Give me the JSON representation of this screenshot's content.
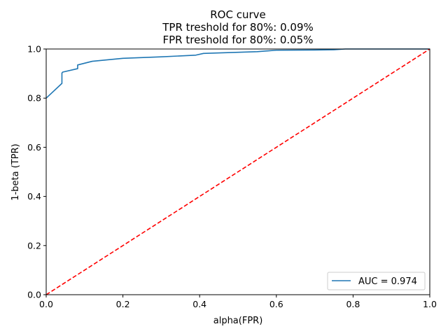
{
  "chart_data": {
    "type": "line",
    "title_lines": [
      "ROC curve",
      "TPR treshold for 80%: 0.09%",
      "FPR treshold for 80%: 0.05%"
    ],
    "xlabel": "alpha(FPR)",
    "ylabel": "1-beta (TPR)",
    "xlim": [
      0,
      1
    ],
    "ylim": [
      0,
      1
    ],
    "xticks": [
      0.0,
      0.2,
      0.4,
      0.6,
      0.8,
      1.0
    ],
    "yticks": [
      0.0,
      0.2,
      0.4,
      0.6,
      0.8,
      1.0
    ],
    "xtick_labels": [
      "0.0",
      "0.2",
      "0.4",
      "0.6",
      "0.8",
      "1.0"
    ],
    "ytick_labels": [
      "0.0",
      "0.2",
      "0.4",
      "0.6",
      "0.8",
      "1.0"
    ],
    "grid": false,
    "legend_position": "bottom-right",
    "series": [
      {
        "name": "AUC = 0.974",
        "color": "#1f77b4",
        "style": "solid",
        "x": [
          0.0,
          0.0,
          0.041,
          0.041,
          0.043,
          0.082,
          0.082,
          0.12,
          0.2,
          0.3,
          0.39,
          0.41,
          0.55,
          0.6,
          0.7,
          0.75,
          0.78,
          0.8,
          1.0
        ],
        "y": [
          0.8,
          0.8,
          0.86,
          0.902,
          0.906,
          0.92,
          0.935,
          0.95,
          0.962,
          0.968,
          0.975,
          0.982,
          0.989,
          0.995,
          0.996,
          0.997,
          1.0,
          1.0,
          1.0
        ]
      },
      {
        "name": "",
        "color": "#ff0000",
        "style": "dashed",
        "x": [
          0.0,
          1.0
        ],
        "y": [
          0.0,
          1.0
        ]
      }
    ],
    "legend_entries": [
      "AUC = 0.974"
    ]
  }
}
